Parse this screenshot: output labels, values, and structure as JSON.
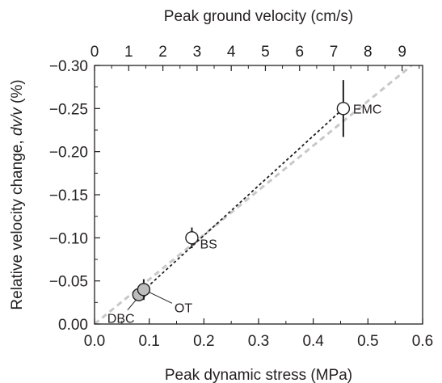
{
  "chart_data": {
    "type": "scatter",
    "xlabel": "Peak dynamic stress (MPa)",
    "x2label": "Peak ground velocity (cm/s)",
    "ylabel_prefix": "Relative velocity change, ",
    "ylabel_italic": "dv/v",
    "ylabel_suffix": " (%)",
    "xlim": [
      0.0,
      0.6
    ],
    "x2lim": [
      0,
      9.6
    ],
    "ylim": [
      0.0,
      -0.3
    ],
    "y_inverted": true,
    "grid": false,
    "xticks": [
      {
        "value": 0.0,
        "label": "0.0"
      },
      {
        "value": 0.1,
        "label": "0.1"
      },
      {
        "value": 0.2,
        "label": "0.2"
      },
      {
        "value": 0.3,
        "label": "0.3"
      },
      {
        "value": 0.4,
        "label": "0.4"
      },
      {
        "value": 0.5,
        "label": "0.5"
      },
      {
        "value": 0.6,
        "label": "0.6"
      }
    ],
    "x2ticks": [
      {
        "value": 0,
        "label": "0"
      },
      {
        "value": 1,
        "label": "1"
      },
      {
        "value": 2,
        "label": "2"
      },
      {
        "value": 3,
        "label": "3"
      },
      {
        "value": 4,
        "label": "4"
      },
      {
        "value": 5,
        "label": "5"
      },
      {
        "value": 6,
        "label": "6"
      },
      {
        "value": 7,
        "label": "7"
      },
      {
        "value": 8,
        "label": "8"
      },
      {
        "value": 9,
        "label": "9"
      }
    ],
    "yticks": [
      {
        "value": 0.0,
        "label": "0.00"
      },
      {
        "value": -0.05,
        "label": "−0.05"
      },
      {
        "value": -0.1,
        "label": "−0.10"
      },
      {
        "value": -0.15,
        "label": "−0.15"
      },
      {
        "value": -0.2,
        "label": "−0.20"
      },
      {
        "value": -0.25,
        "label": "−0.25"
      },
      {
        "value": -0.3,
        "label": "−0.30"
      }
    ],
    "points": [
      {
        "label": "DBC",
        "x": 0.081,
        "y": -0.034,
        "err": 0.006,
        "fill": "#bdbdbd"
      },
      {
        "label": "OT",
        "x": 0.09,
        "y": -0.04,
        "err": 0.012,
        "fill": "#bdbdbd"
      },
      {
        "label": "BS",
        "x": 0.178,
        "y": -0.1,
        "err": 0.012,
        "fill": "#ffffff"
      },
      {
        "label": "EMC",
        "x": 0.455,
        "y": -0.25,
        "err": 0.033,
        "fill": "#ffffff"
      }
    ],
    "fit_line_gray": {
      "x": [
        0.0,
        0.58
      ],
      "y": [
        0.0,
        -0.3
      ],
      "color": "#c8c8c8",
      "style": "dashed"
    },
    "fit_line_black": {
      "x": [
        0.081,
        0.455
      ],
      "y": [
        -0.034,
        -0.25
      ],
      "color": "#231f20",
      "style": "dotted"
    },
    "colors": {
      "axis": "#231f20",
      "marker_edge": "#231f20"
    }
  }
}
